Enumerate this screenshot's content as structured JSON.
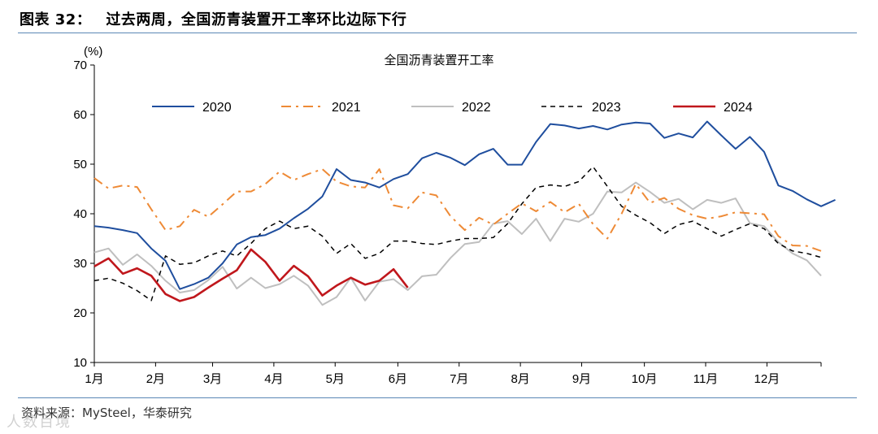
{
  "figure": {
    "label": "图表 32：",
    "title": "过去两周，全国沥青装置开工率环比边际下行",
    "source": "资料来源：MySteel，华泰研究",
    "watermark": "人数百境"
  },
  "colors": {
    "2020": "#1f4e9e",
    "2021": "#ee8a36",
    "2022": "#bfbfbf",
    "2023": "#000000",
    "2024": "#c0171c",
    "rule": "#5b87b5"
  },
  "chart_data": {
    "type": "line",
    "title": "全国沥青装置开工率",
    "ylabel": "(%)",
    "ylim": [
      10,
      70
    ],
    "yticks": [
      10,
      20,
      30,
      40,
      50,
      60,
      70
    ],
    "xlim": [
      0,
      51
    ],
    "x_ticks": [
      {
        "label": "1月",
        "pos": 0
      },
      {
        "label": "2月",
        "pos": 4.3
      },
      {
        "label": "3月",
        "pos": 8.3
      },
      {
        "label": "4月",
        "pos": 12.6
      },
      {
        "label": "5月",
        "pos": 16.9
      },
      {
        "label": "6月",
        "pos": 21.3
      },
      {
        "label": "7月",
        "pos": 25.6
      },
      {
        "label": "8月",
        "pos": 29.9
      },
      {
        "label": "9月",
        "pos": 34.2
      },
      {
        "label": "10月",
        "pos": 38.6
      },
      {
        "label": "11月",
        "pos": 42.9
      },
      {
        "label": "12月",
        "pos": 47.2
      }
    ],
    "legend_position": "top",
    "series": [
      {
        "name": "2020",
        "style": "solid",
        "values": [
          37.5,
          37.2,
          36.7,
          36.1,
          33.0,
          30.5,
          24.8,
          25.8,
          27.1,
          30.0,
          33.8,
          35.3,
          35.7,
          37.0,
          39.1,
          41.0,
          43.5,
          49.0,
          46.8,
          46.3,
          45.3,
          47.0,
          48.0,
          51.2,
          52.3,
          51.3,
          49.8,
          52.0,
          53.1,
          49.9,
          49.9,
          54.5,
          58.1,
          57.8,
          57.2,
          57.7,
          57.0,
          58.0,
          58.4,
          58.2,
          55.3,
          56.2,
          55.4,
          58.6,
          55.8,
          53.1,
          55.5,
          52.5,
          45.7,
          44.6,
          42.9,
          41.5,
          42.8
        ]
      },
      {
        "name": "2021",
        "style": "dashdot",
        "values": [
          47.2,
          45.1,
          45.7,
          45.4,
          40.9,
          36.7,
          37.5,
          40.8,
          39.4,
          41.9,
          44.5,
          44.5,
          46.0,
          48.5,
          46.8,
          48.0,
          49.0,
          46.5,
          45.5,
          45.3,
          49.0,
          41.7,
          41.1,
          44.3,
          43.7,
          39.5,
          36.7,
          39.2,
          37.8,
          40.0,
          42.1,
          40.5,
          42.4,
          40.3,
          42.0,
          37.9,
          35.0,
          40.0,
          46.0,
          42.2,
          43.2,
          41.0,
          39.7,
          39.0,
          39.5,
          40.3,
          40.1,
          39.9,
          35.5,
          33.6,
          33.5,
          32.5
        ]
      },
      {
        "name": "2022",
        "style": "solid",
        "values": [
          32.2,
          33.0,
          29.7,
          31.8,
          29.5,
          26.5,
          24.1,
          24.6,
          26.6,
          29.3,
          24.9,
          27.1,
          25.0,
          25.8,
          27.5,
          25.5,
          21.6,
          23.2,
          27.1,
          22.5,
          26.3,
          26.8,
          24.6,
          27.4,
          27.7,
          31.1,
          33.9,
          34.3,
          38.0,
          38.5,
          35.9,
          39.0,
          34.5,
          39.0,
          38.4,
          40.0,
          44.5,
          44.3,
          46.3,
          44.4,
          42.2,
          43.0,
          40.9,
          42.8,
          42.2,
          43.1,
          38.1,
          37.5,
          34.3,
          32.0,
          30.6,
          27.5
        ]
      },
      {
        "name": "2023",
        "style": "dashed",
        "values": [
          26.5,
          27.0,
          26.0,
          24.5,
          22.5,
          31.5,
          29.8,
          30.1,
          31.5,
          32.5,
          31.5,
          34.0,
          37.0,
          38.5,
          37.0,
          37.5,
          35.5,
          32.0,
          34.0,
          31.0,
          32.0,
          34.5,
          34.5,
          34.0,
          33.8,
          34.5,
          35.0,
          35.0,
          35.2,
          38.0,
          42.0,
          45.3,
          45.8,
          45.5,
          46.5,
          49.5,
          45.5,
          41.5,
          39.7,
          38.2,
          36.0,
          37.8,
          38.5,
          37.0,
          35.5,
          36.8,
          38.0,
          37.0,
          34.0,
          32.5,
          32.0,
          31.2
        ]
      },
      {
        "name": "2024",
        "style": "solid",
        "values": [
          29.4,
          31.0,
          27.9,
          29.0,
          27.5,
          23.8,
          22.4,
          23.2,
          25.1,
          26.9,
          28.6,
          32.8,
          30.3,
          26.5,
          29.5,
          27.4,
          23.5,
          25.5,
          27.1,
          25.7,
          26.5,
          28.8,
          25.1
        ]
      }
    ]
  }
}
